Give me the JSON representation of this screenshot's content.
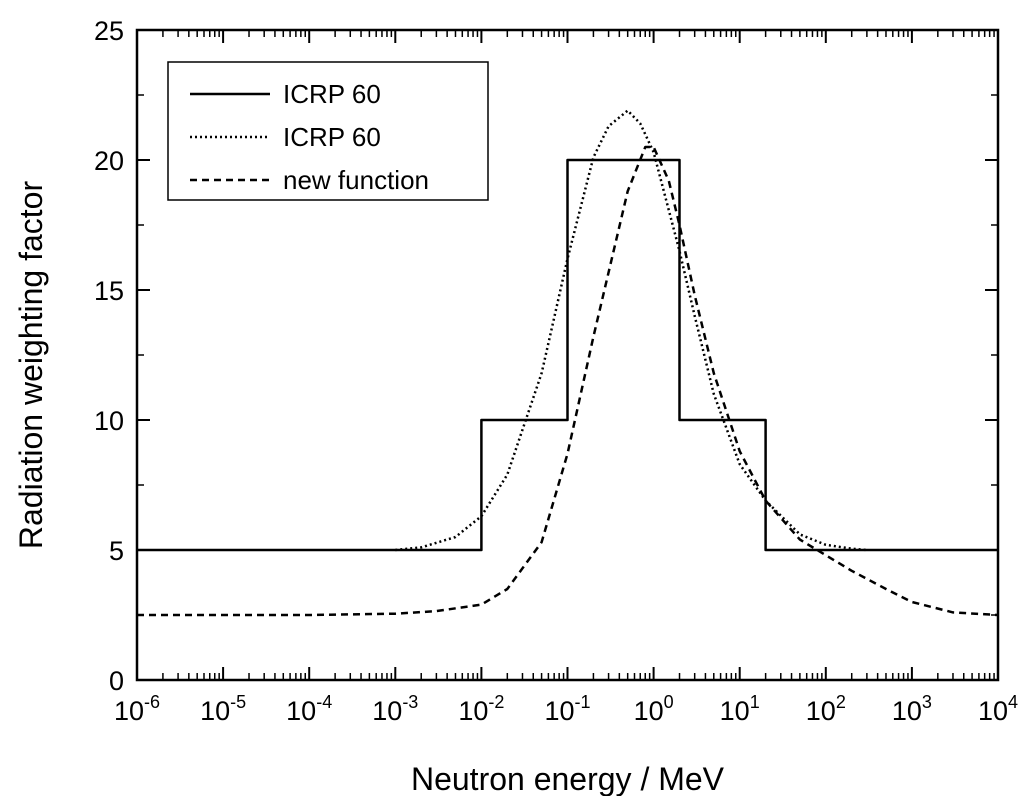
{
  "chart_data": {
    "type": "line",
    "x_scale": "log",
    "xlim": [
      1e-06,
      10000
    ],
    "ylim": [
      0,
      25
    ],
    "xlabel": "Neutron energy / MeV",
    "ylabel": "Radiation weighting factor",
    "x_ticks": [
      {
        "base": "10",
        "exp": "-6",
        "value": 1e-06
      },
      {
        "base": "10",
        "exp": "-5",
        "value": 1e-05
      },
      {
        "base": "10",
        "exp": "-4",
        "value": 0.0001
      },
      {
        "base": "10",
        "exp": "-3",
        "value": 0.001
      },
      {
        "base": "10",
        "exp": "-2",
        "value": 0.01
      },
      {
        "base": "10",
        "exp": "-1",
        "value": 0.1
      },
      {
        "base": "10",
        "exp": "0",
        "value": 1
      },
      {
        "base": "10",
        "exp": "1",
        "value": 10
      },
      {
        "base": "10",
        "exp": "2",
        "value": 100
      },
      {
        "base": "10",
        "exp": "3",
        "value": 1000
      },
      {
        "base": "10",
        "exp": "4",
        "value": 10000
      }
    ],
    "y_ticks": [
      {
        "label": "0",
        "value": 0
      },
      {
        "label": "5",
        "value": 5
      },
      {
        "label": "10",
        "value": 10
      },
      {
        "label": "15",
        "value": 15
      },
      {
        "label": "20",
        "value": 20
      },
      {
        "label": "25",
        "value": 25
      }
    ],
    "legend_position": "top-left",
    "series": [
      {
        "name": "ICRP 60",
        "style": "solid",
        "x": [
          1e-06,
          0.01,
          0.01,
          0.1,
          0.1,
          2,
          2,
          20,
          20,
          10000
        ],
        "y": [
          5,
          5,
          10,
          10,
          20,
          20,
          10,
          10,
          5,
          5
        ]
      },
      {
        "name": "ICRP 60",
        "style": "dotted",
        "x": [
          0.001,
          0.002,
          0.005,
          0.01,
          0.02,
          0.05,
          0.1,
          0.2,
          0.3,
          0.5,
          0.7,
          1,
          2,
          3,
          5,
          10,
          20,
          50,
          100,
          200,
          300
        ],
        "y": [
          5.0,
          5.1,
          5.5,
          6.3,
          7.9,
          11.8,
          16.2,
          20.1,
          21.3,
          21.9,
          21.4,
          20.3,
          16.5,
          14.0,
          11.0,
          8.3,
          6.9,
          5.6,
          5.2,
          5.05,
          5.0
        ]
      },
      {
        "name": "new function",
        "style": "dashed",
        "x": [
          1e-06,
          1e-05,
          0.0001,
          0.001,
          0.003,
          0.01,
          0.02,
          0.05,
          0.1,
          0.2,
          0.5,
          0.8,
          1,
          1.5,
          2,
          3,
          5,
          10,
          20,
          50,
          100,
          200,
          500,
          1000,
          3000,
          10000
        ],
        "y": [
          2.5,
          2.5,
          2.5,
          2.55,
          2.65,
          2.9,
          3.5,
          5.3,
          8.7,
          13.2,
          18.8,
          20.5,
          20.5,
          19.2,
          17.5,
          14.8,
          11.8,
          8.8,
          6.9,
          5.4,
          4.8,
          4.2,
          3.5,
          3.0,
          2.6,
          2.5
        ]
      }
    ]
  }
}
